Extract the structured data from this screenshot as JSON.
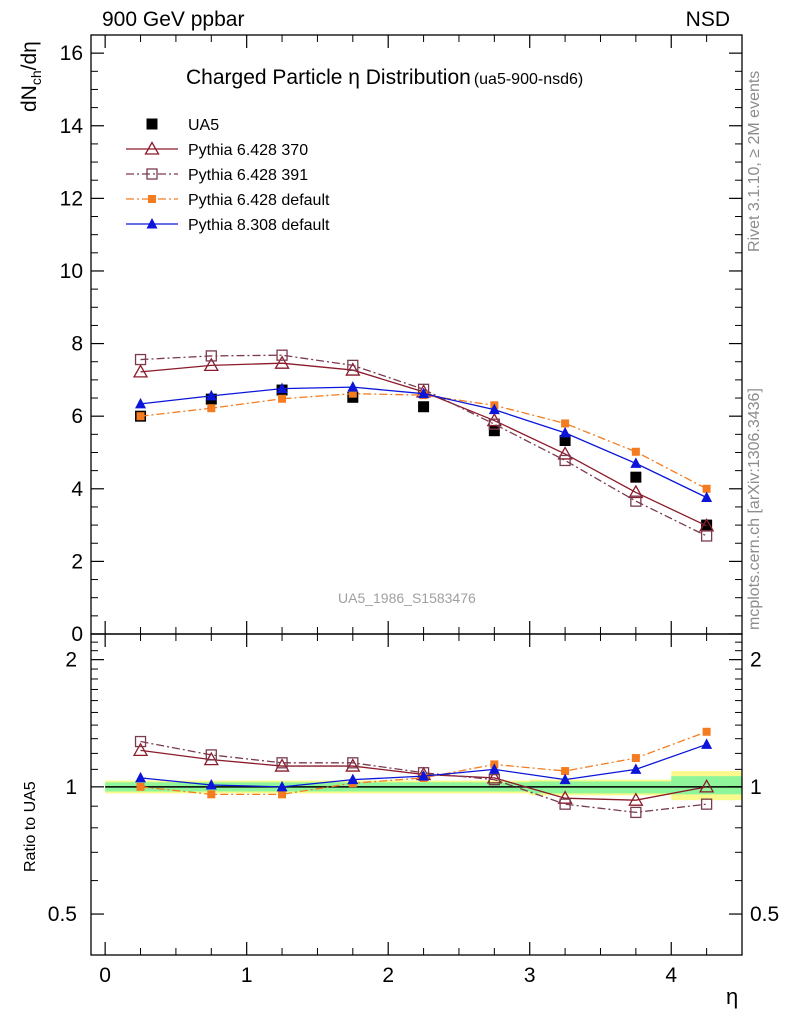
{
  "header": {
    "left": "900 GeV ppbar",
    "right": "NSD"
  },
  "side_text": {
    "rivet": "Rivet 3.1.10, ≥ 2M events",
    "mcplots": "mcplots.cern.ch [arXiv:1306.3436]"
  },
  "watermark": "UA5_1986_S1583476",
  "colors": {
    "UA5": "#000000",
    "p370": "#8b1a2b",
    "p391": "#7a3b4e",
    "p6def": "#f47c20",
    "p8def": "#0b16d9",
    "band_green": "#8ef59a",
    "band_yellow": "#fafa8c"
  },
  "chart_data": [
    {
      "type": "scatter",
      "title": "Charged Particle η Distribution",
      "subtitle": "(ua5-900-nsd6)",
      "xlabel": "",
      "ylabel": "dN_ch/dη",
      "ylabel_main": "dN",
      "ylabel_sub": "ch",
      "ylabel_tail": "/dη",
      "xlim": [
        -0.1,
        4.5
      ],
      "ylim": [
        0,
        16.5
      ],
      "y_ticks": [
        0,
        2,
        4,
        6,
        8,
        10,
        12,
        14,
        16
      ],
      "legend_position": "top-left",
      "x": [
        0.25,
        0.75,
        1.25,
        1.75,
        2.25,
        2.75,
        3.25,
        3.75,
        4.25
      ],
      "series": [
        {
          "name": "UA5",
          "key": "UA5",
          "marker": "square-filled",
          "line": "none",
          "values": [
            6.0,
            6.47,
            6.72,
            6.52,
            6.26,
            5.6,
            5.33,
            4.32,
            3.0
          ]
        },
        {
          "name": "Pythia 6.428 370",
          "key": "p370",
          "marker": "triangle-open",
          "line": "solid",
          "values": [
            7.22,
            7.4,
            7.46,
            7.27,
            6.67,
            5.88,
            4.96,
            3.9,
            2.98
          ]
        },
        {
          "name": "Pythia 6.428 391",
          "key": "p391",
          "marker": "square-open",
          "line": "dashdot",
          "values": [
            7.56,
            7.66,
            7.68,
            7.4,
            6.74,
            5.78,
            4.78,
            3.66,
            2.7
          ]
        },
        {
          "name": "Pythia 6.428 default",
          "key": "p6def",
          "marker": "square-small",
          "line": "dashdot",
          "values": [
            6.0,
            6.22,
            6.48,
            6.62,
            6.58,
            6.3,
            5.8,
            5.02,
            4.0
          ]
        },
        {
          "name": "Pythia 8.308 default",
          "key": "p8def",
          "marker": "triangle-filled",
          "line": "solid",
          "values": [
            6.34,
            6.56,
            6.76,
            6.8,
            6.62,
            6.18,
            5.54,
            4.7,
            3.76
          ]
        }
      ]
    },
    {
      "type": "scatter",
      "title": "",
      "xlabel": "η",
      "ylabel": "Ratio to UA5",
      "xlim": [
        -0.1,
        4.5
      ],
      "ylim": [
        0.4,
        2.3
      ],
      "y_scale": "log",
      "y_ticks": [
        0.5,
        1,
        2
      ],
      "x_ticks": [
        0,
        1,
        2,
        3,
        4
      ],
      "x": [
        0.25,
        0.75,
        1.25,
        1.75,
        2.25,
        2.75,
        3.25,
        3.75,
        4.25
      ],
      "series": [
        {
          "name": "Pythia 6.428 370",
          "key": "p370",
          "values": [
            1.22,
            1.16,
            1.12,
            1.12,
            1.07,
            1.05,
            0.94,
            0.93,
            1.0
          ]
        },
        {
          "name": "Pythia 6.428 391",
          "key": "p391",
          "values": [
            1.28,
            1.19,
            1.14,
            1.14,
            1.08,
            1.04,
            0.91,
            0.87,
            0.91
          ]
        },
        {
          "name": "Pythia 6.428 default",
          "key": "p6def",
          "values": [
            1.0,
            0.96,
            0.96,
            1.02,
            1.05,
            1.13,
            1.09,
            1.17,
            1.35
          ]
        },
        {
          "name": "Pythia 8.308 default",
          "key": "p8def",
          "values": [
            1.05,
            1.01,
            1.0,
            1.04,
            1.06,
            1.1,
            1.04,
            1.1,
            1.26
          ]
        }
      ],
      "uncertainty_bands": [
        {
          "x_range": [
            0.0,
            4.0
          ],
          "green": [
            0.975,
            1.025
          ],
          "yellow": [
            0.965,
            1.035
          ]
        },
        {
          "x_range": [
            3.0,
            4.0
          ],
          "green": [
            0.965,
            1.03
          ],
          "yellow": [
            0.955,
            1.04
          ]
        },
        {
          "x_range": [
            4.0,
            4.5
          ],
          "green": [
            0.96,
            1.06
          ],
          "yellow": [
            0.93,
            1.09
          ]
        }
      ]
    }
  ]
}
